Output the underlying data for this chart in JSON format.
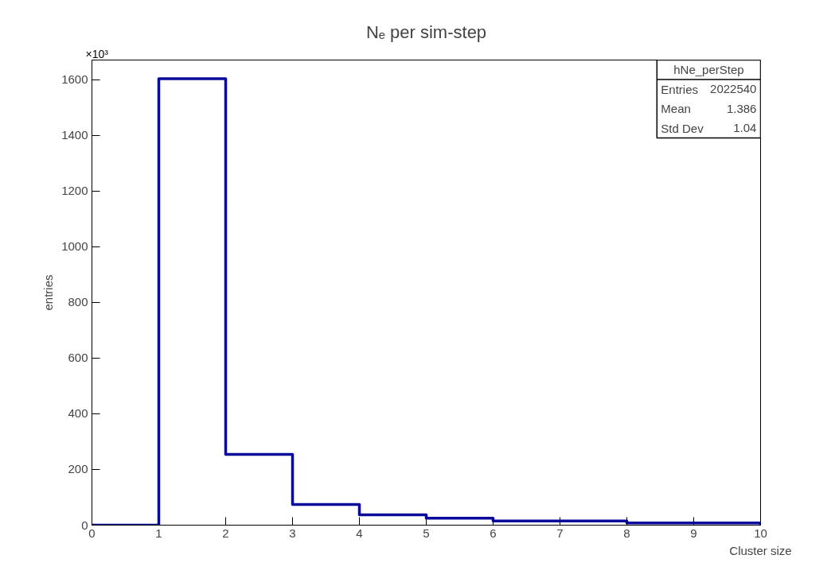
{
  "chart_data": {
    "type": "histogram",
    "title": "Nₑ per sim-step",
    "xlabel": "Cluster size",
    "ylabel": "entries",
    "bins": [
      0,
      1,
      2,
      3,
      4,
      5,
      6,
      7,
      8,
      9,
      10
    ],
    "values": [
      0,
      1603,
      254,
      74,
      37,
      25,
      15,
      15,
      8,
      8
    ],
    "color": "#0a0a9a",
    "xlim": [
      0,
      10
    ],
    "ylim": [
      0,
      1670
    ],
    "xticks": [
      0,
      1,
      2,
      3,
      4,
      5,
      6,
      7,
      8,
      9,
      10
    ],
    "yticks": [
      0,
      200,
      400,
      600,
      800,
      1000,
      1200,
      1400,
      1600
    ],
    "grid": false,
    "annotations": [
      "×10³",
      "hNe_perStep",
      "Entries",
      "2022540",
      "Mean",
      "1.386",
      "Std Dev",
      "1.04"
    ]
  }
}
